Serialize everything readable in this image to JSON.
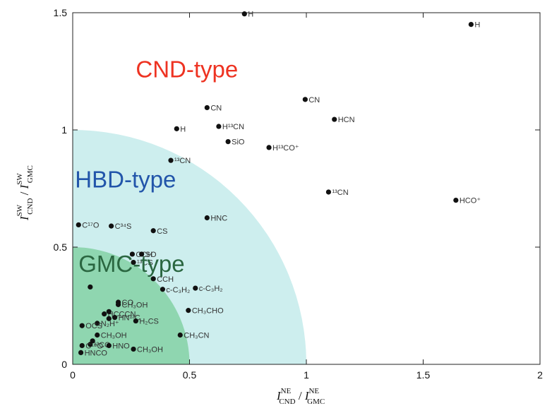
{
  "chart_data": {
    "type": "scatter",
    "xlabel": "I NE CND / I NE GMC",
    "ylabel": "I SW CND / I SW GMC",
    "xlabel_parts": {
      "base": "I",
      "sup": "NE",
      "sub": "CND",
      "slash": "/",
      "base2": "I",
      "sup2": "NE",
      "sub2": "GMC"
    },
    "ylabel_parts": {
      "base": "I",
      "sup": "SW",
      "sub": "CND",
      "slash": "/",
      "base2": "I",
      "sup2": "SW",
      "sub2": "GMC"
    },
    "xlim": [
      0,
      2
    ],
    "ylim": [
      0,
      1.5
    ],
    "x_ticks": [
      0,
      0.5,
      1,
      1.5,
      2
    ],
    "x_tick_labels": [
      "0",
      "0.5",
      "1",
      "1.5",
      "2"
    ],
    "y_ticks": [
      0,
      0.5,
      1,
      1.5
    ],
    "y_tick_labels": [
      "0",
      "0.5",
      "1",
      "1.5"
    ],
    "grid": false,
    "regions": [
      {
        "label": "CND-type",
        "color": "#ee3322"
      },
      {
        "label": "HBD-type",
        "color": "#2255aa",
        "fill": "#cdeeee",
        "radius_x": 1.0,
        "radius_y": 1.0
      },
      {
        "label": "GMC-type",
        "color": "#2a6640",
        "fill": "#8fd6b0",
        "radius_x": 0.5,
        "radius_y": 0.5
      }
    ],
    "points": [
      {
        "label": "H",
        "x": 0.735,
        "y": 1.495
      },
      {
        "label": "H",
        "x": 1.705,
        "y": 1.45
      },
      {
        "label": "CN",
        "x": 0.995,
        "y": 1.13
      },
      {
        "label": "CN",
        "x": 0.575,
        "y": 1.095
      },
      {
        "label": "H¹³CN",
        "x": 0.625,
        "y": 1.015
      },
      {
        "label": "HCN",
        "x": 1.12,
        "y": 1.045
      },
      {
        "label": "H",
        "x": 0.445,
        "y": 1.005
      },
      {
        "label": "SiO",
        "x": 0.665,
        "y": 0.95
      },
      {
        "label": "H¹³CO⁺",
        "x": 0.84,
        "y": 0.925
      },
      {
        "label": "¹³CN",
        "x": 0.42,
        "y": 0.87
      },
      {
        "label": "¹³CN",
        "x": 1.095,
        "y": 0.735
      },
      {
        "label": "HCO⁺",
        "x": 1.64,
        "y": 0.7
      },
      {
        "label": "HNC",
        "x": 0.575,
        "y": 0.625
      },
      {
        "label": "C¹⁷O",
        "x": 0.025,
        "y": 0.595
      },
      {
        "label": "C³⁴S",
        "x": 0.165,
        "y": 0.59
      },
      {
        "label": "CS",
        "x": 0.345,
        "y": 0.57
      },
      {
        "label": "CCH",
        "x": 0.255,
        "y": 0.47
      },
      {
        "label": "SO",
        "x": 0.295,
        "y": 0.47
      },
      {
        "label": "¹³CS",
        "x": 0.26,
        "y": 0.435
      },
      {
        "label": "CCH",
        "x": 0.345,
        "y": 0.365
      },
      {
        "label": "c-C₃H₂",
        "x": 0.385,
        "y": 0.32
      },
      {
        "label": "c-C₃H₂",
        "x": 0.525,
        "y": 0.325
      },
      {
        "label": "",
        "x": 0.075,
        "y": 0.33
      },
      {
        "label": "CO",
        "x": 0.195,
        "y": 0.265
      },
      {
        "label": "CH₃OH",
        "x": 0.195,
        "y": 0.255
      },
      {
        "label": "HCCCN",
        "x": 0.135,
        "y": 0.215
      },
      {
        "label": "",
        "x": 0.155,
        "y": 0.225
      },
      {
        "label": "HN¹³C",
        "x": 0.18,
        "y": 0.2
      },
      {
        "label": "",
        "x": 0.155,
        "y": 0.195
      },
      {
        "label": "CH₃CHO",
        "x": 0.495,
        "y": 0.23
      },
      {
        "label": "N₂H⁺",
        "x": 0.105,
        "y": 0.175
      },
      {
        "label": "OCS",
        "x": 0.04,
        "y": 0.165
      },
      {
        "label": "H₂CS",
        "x": 0.27,
        "y": 0.185
      },
      {
        "label": "CH₃OH",
        "x": 0.105,
        "y": 0.125
      },
      {
        "label": "¹³CO",
        "x": 0.075,
        "y": 0.085
      },
      {
        "label": "",
        "x": 0.085,
        "y": 0.1
      },
      {
        "label": "C¹⁸O",
        "x": 0.04,
        "y": 0.08
      },
      {
        "label": "HNO",
        "x": 0.155,
        "y": 0.08
      },
      {
        "label": "CH₃CN",
        "x": 0.46,
        "y": 0.125
      },
      {
        "label": "CH₃OH",
        "x": 0.26,
        "y": 0.065
      },
      {
        "label": "HNCO",
        "x": 0.035,
        "y": 0.05
      }
    ]
  }
}
